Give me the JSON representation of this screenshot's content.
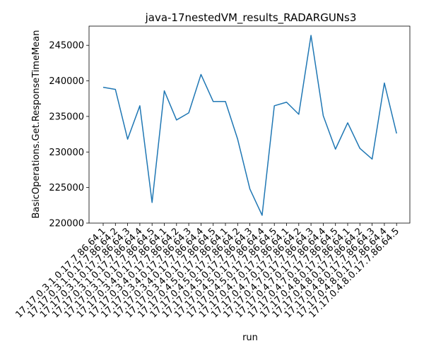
{
  "chart_data": {
    "type": "line",
    "title": "java-17nestedVM_results_RADARGUNs3",
    "xlabel": "run",
    "ylabel": "BasicOperations.Get.ResponseTimeMean",
    "categories": [
      "17.17.0.3.1.0.17.7.86.64.1",
      "17.17.0.3.1.0.17.7.86.64.2",
      "17.17.0.3.1.0.17.7.86.64.3",
      "17.17.0.3.1.0.17.7.86.64.4",
      "17.17.0.3.1.0.17.7.86.64.5",
      "17.17.0.3.4.0.17.7.86.64.1",
      "17.17.0.3.4.0.17.7.86.64.2",
      "17.17.0.3.4.0.17.7.86.64.3",
      "17.17.0.3.4.0.17.7.86.64.4",
      "17.17.0.3.4.0.17.7.86.64.5",
      "17.17.0.4.5.0.17.7.86.64.1",
      "17.17.0.4.5.0.17.7.86.64.2",
      "17.17.0.4.5.0.17.7.86.64.3",
      "17.17.0.4.5.0.17.7.86.64.4",
      "17.17.0.4.5.0.17.7.86.64.5",
      "17.17.0.4.7.0.17.7.86.64.1",
      "17.17.0.4.7.0.17.7.86.64.2",
      "17.17.0.4.7.0.17.7.86.64.3",
      "17.17.0.4.7.0.17.7.86.64.4",
      "17.17.0.4.7.0.17.7.86.64.5",
      "17.17.0.4.8.0.17.7.86.64.1",
      "17.17.0.4.8.0.17.7.86.64.2",
      "17.17.0.4.8.0.17.7.86.64.3",
      "17.17.0.4.8.0.17.7.86.64.4",
      "17.17.0.4.8.0.17.7.86.64.5"
    ],
    "values": [
      239100,
      238800,
      231800,
      236500,
      222900,
      238600,
      234500,
      235500,
      240900,
      237100,
      237100,
      231800,
      224800,
      221100,
      236500,
      237000,
      235300,
      246400,
      235100,
      230400,
      234100,
      230500,
      229000,
      239700,
      232600
    ],
    "yticks": [
      220000,
      225000,
      230000,
      235000,
      240000,
      245000
    ],
    "ylim": [
      220000,
      247700
    ],
    "line_color": "#1f77b4",
    "grid": false,
    "legend": "none"
  }
}
